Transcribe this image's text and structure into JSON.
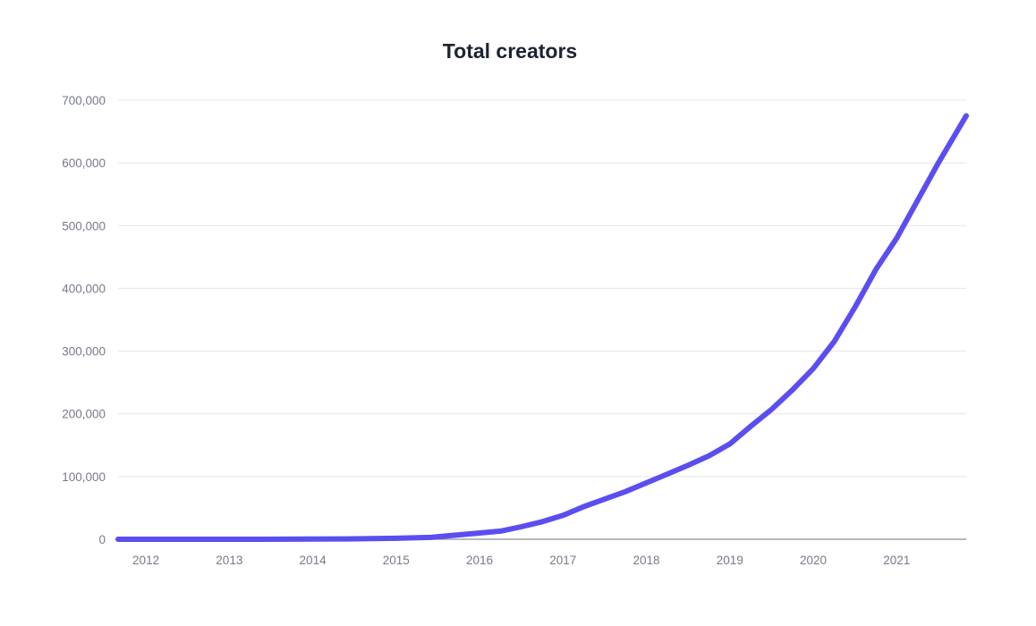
{
  "chart_data": {
    "type": "line",
    "title": "Total creators",
    "xlabel": "",
    "ylabel": "",
    "ylim": [
      0,
      700000
    ],
    "xlim": [
      "2011-09",
      "2021-11"
    ],
    "grid": true,
    "legend": "none",
    "line_color": "#5b4ef0",
    "yticks": [
      {
        "value": 0,
        "label": "0"
      },
      {
        "value": 100000,
        "label": "100,000"
      },
      {
        "value": 200000,
        "label": "200,000"
      },
      {
        "value": 300000,
        "label": "300,000"
      },
      {
        "value": 400000,
        "label": "400,000"
      },
      {
        "value": 500000,
        "label": "500,000"
      },
      {
        "value": 600000,
        "label": "600,000"
      },
      {
        "value": 700000,
        "label": "700,000"
      }
    ],
    "xticks": [
      {
        "value": "2012",
        "label": "2012"
      },
      {
        "value": "2013",
        "label": "2013"
      },
      {
        "value": "2014",
        "label": "2014"
      },
      {
        "value": "2015",
        "label": "2015"
      },
      {
        "value": "2016",
        "label": "2016"
      },
      {
        "value": "2017",
        "label": "2017"
      },
      {
        "value": "2018",
        "label": "2018"
      },
      {
        "value": "2019",
        "label": "2019"
      },
      {
        "value": "2020",
        "label": "2020"
      },
      {
        "value": "2021",
        "label": "2021"
      }
    ],
    "series": [
      {
        "x": [
          "2011-09",
          "2012-06",
          "2013-06",
          "2014-06",
          "2015-01",
          "2015-06",
          "2015-09",
          "2016-01",
          "2016-04",
          "2016-07",
          "2016-10",
          "2017-01",
          "2017-04",
          "2017-07",
          "2017-10",
          "2018-01",
          "2018-04",
          "2018-07",
          "2018-10",
          "2019-01",
          "2019-04",
          "2019-07",
          "2019-10",
          "2020-01",
          "2020-04",
          "2020-07",
          "2020-10",
          "2021-01",
          "2021-04",
          "2021-07",
          "2021-11"
        ],
        "values": [
          0,
          0,
          0,
          500,
          1500,
          3000,
          6000,
          10000,
          13000,
          20000,
          28000,
          38000,
          52000,
          64000,
          76000,
          90000,
          104000,
          118000,
          133000,
          152000,
          180000,
          207000,
          238000,
          272000,
          315000,
          370000,
          430000,
          480000,
          540000,
          600000,
          675000
        ]
      }
    ]
  }
}
